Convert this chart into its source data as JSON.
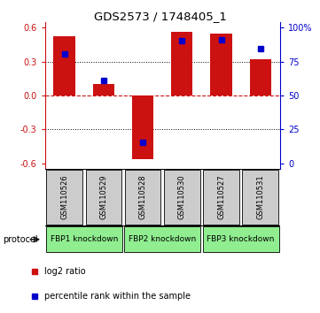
{
  "title": "GDS2573 / 1748405_1",
  "samples": [
    "GSM110526",
    "GSM110529",
    "GSM110528",
    "GSM110530",
    "GSM110527",
    "GSM110531"
  ],
  "log2_ratios": [
    0.52,
    0.1,
    -0.56,
    0.56,
    0.55,
    0.32
  ],
  "percentile_ranks": [
    78,
    60,
    18,
    87,
    88,
    82
  ],
  "groups": [
    {
      "label": "FBP1 knockdown",
      "cols": [
        0,
        1
      ],
      "color": "#90EE90"
    },
    {
      "label": "FBP2 knockdown",
      "cols": [
        2,
        3
      ],
      "color": "#90EE90"
    },
    {
      "label": "FBP3 knockdown",
      "cols": [
        4,
        5
      ],
      "color": "#90EE90"
    }
  ],
  "ylim": [
    -0.65,
    0.65
  ],
  "yticks_left": [
    -0.6,
    -0.3,
    0.0,
    0.3,
    0.6
  ],
  "yticks_right": [
    0,
    25,
    50,
    75,
    100
  ],
  "bar_color": "#cc1111",
  "dot_color": "#0000cc",
  "zero_line_color": "#cc1111",
  "sample_box_color": "#cccccc",
  "bg_color": "white",
  "legend_text_red": "log2 ratio",
  "legend_text_blue": "percentile rank within the sample"
}
